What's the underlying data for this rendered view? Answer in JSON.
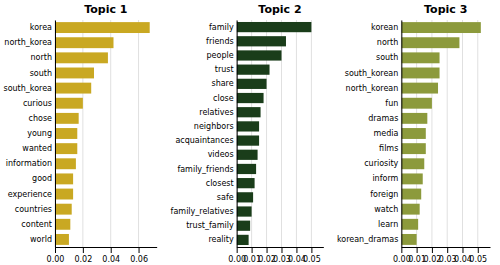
{
  "chart_data": [
    {
      "type": "bar",
      "orientation": "horizontal",
      "title": "Topic 1",
      "categories": [
        "korea",
        "north_korea",
        "north",
        "south",
        "south_korea",
        "curious",
        "chose",
        "young",
        "wanted",
        "information",
        "good",
        "experience",
        "countries",
        "content",
        "world"
      ],
      "values": [
        0.068,
        0.042,
        0.038,
        0.028,
        0.026,
        0.02,
        0.017,
        0.016,
        0.016,
        0.015,
        0.013,
        0.013,
        0.012,
        0.011,
        0.01
      ],
      "color": "#C9A822",
      "xlim": [
        0,
        0.073
      ],
      "xticks": [
        {
          "value": 0,
          "label": "0.00"
        },
        0.02,
        0.04,
        0.06
      ],
      "grid": true
    },
    {
      "type": "bar",
      "orientation": "horizontal",
      "title": "Topic 2",
      "categories": [
        "family",
        "friends",
        "people",
        "trust",
        "share",
        "close",
        "relatives",
        "neighbors",
        "acquaintances",
        "videos",
        "family_friends",
        "closest",
        "safe",
        "family_relatives",
        "trust_family",
        "reality"
      ],
      "values": [
        0.05,
        0.033,
        0.03,
        0.022,
        0.02,
        0.018,
        0.016,
        0.015,
        0.015,
        0.014,
        0.013,
        0.012,
        0.011,
        0.01,
        0.009,
        0.008
      ],
      "color": "#1A3D1A",
      "xlim": [
        0,
        0.058
      ],
      "xticks": [
        {
          "value": 0,
          "label": "0.00"
        },
        0.01,
        0.02,
        0.03,
        0.04,
        0.05
      ],
      "grid": true
    },
    {
      "type": "bar",
      "orientation": "horizontal",
      "title": "Topic 3",
      "categories": [
        "korean",
        "north",
        "south",
        "south_korean",
        "north_korean",
        "fun",
        "dramas",
        "media",
        "films",
        "curiosity",
        "inform",
        "foreign",
        "watch",
        "learn",
        "korean_dramas"
      ],
      "values": [
        0.052,
        0.038,
        0.025,
        0.025,
        0.024,
        0.02,
        0.017,
        0.016,
        0.016,
        0.015,
        0.014,
        0.013,
        0.012,
        0.011,
        0.01
      ],
      "color": "#8C9A3C",
      "xlim": [
        0,
        0.058
      ],
      "xticks": [
        {
          "value": 0,
          "label": "0.00"
        },
        0.01,
        0.02,
        0.03,
        0.04,
        0.05
      ],
      "grid": true
    }
  ]
}
